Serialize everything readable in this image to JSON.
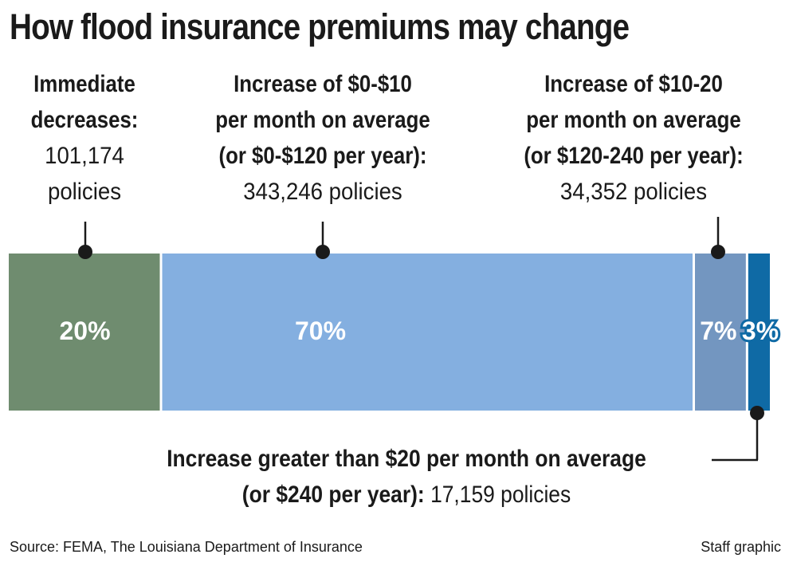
{
  "title": "How flood insurance premiums may change",
  "chart_data": {
    "type": "bar",
    "orientation": "horizontal-stacked",
    "categories": [
      "Immediate decreases",
      "Increase of $0-$10 per month on average (or $0-$120 per year)",
      "Increase of $10-20 per month on average (or $120-240 per year)",
      "Increase greater than $20 per month on average (or $240 per year)"
    ],
    "values": [
      20,
      70,
      7,
      3
    ],
    "policies": [
      101174,
      343246,
      34352,
      17159
    ],
    "value_labels": [
      "20%",
      "70%",
      "7%",
      "3%"
    ],
    "colors": [
      "#6f8c6f",
      "#84afe0",
      "#7396c0",
      "#0f6aa5"
    ],
    "title": "How flood insurance premiums may change"
  },
  "labels": [
    {
      "bold": [
        "Immediate",
        "decreases:"
      ],
      "normal": [
        "101,174",
        "policies"
      ]
    },
    {
      "bold": [
        "Increase of $0-$10",
        "per month on average",
        "(or $0-$120 per year):"
      ],
      "normal": [
        "343,246 policies"
      ]
    },
    {
      "bold": [
        "Increase of $10-20",
        "per month on average",
        "(or $120-240 per year):"
      ],
      "normal": [
        "34,352 policies"
      ]
    },
    {
      "bold_line1": "Increase greater than $20 per month on average",
      "bold_line2": "(or $240 per year):",
      "normal_line2": " 17,159 policies"
    }
  ],
  "footer": {
    "source": "Source: FEMA, The Louisiana Department of Insurance",
    "credit": "Staff graphic"
  }
}
